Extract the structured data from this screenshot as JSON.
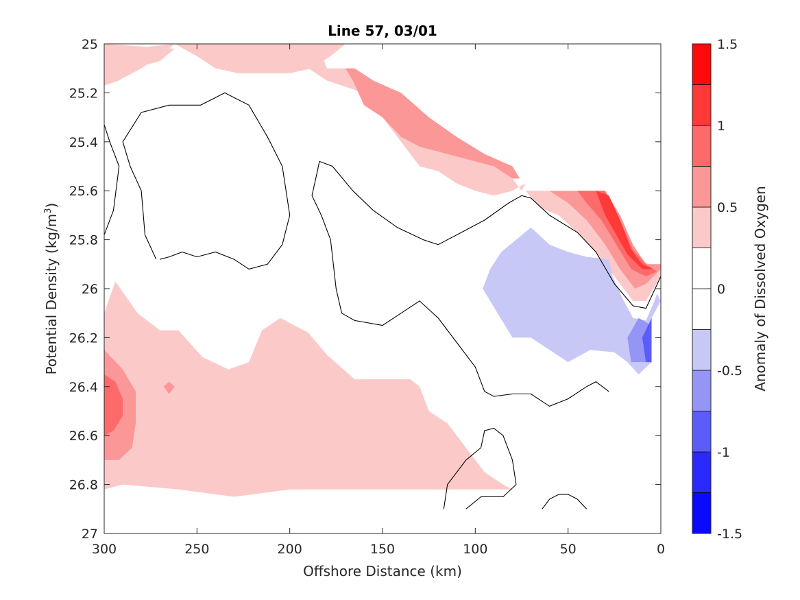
{
  "chart_data": {
    "type": "heatmap",
    "subtype": "filled-contour",
    "title": "Line 57, 03/01",
    "xlabel": "Offshore Distance (km)",
    "ylabel_main": "Potential Density (kg/m",
    "ylabel_sup": "3",
    "ylabel_close": ")",
    "xlim": [
      300,
      0
    ],
    "x_reversed": true,
    "ylim": [
      25,
      27
    ],
    "y_reversed": true,
    "xticks": [
      300,
      250,
      200,
      150,
      100,
      50,
      0
    ],
    "xtick_labels": [
      "300",
      "250",
      "200",
      "150",
      "100",
      "50",
      "0"
    ],
    "yticks": [
      25,
      25.2,
      25.4,
      25.6,
      25.8,
      26,
      26.2,
      26.4,
      26.6,
      26.8,
      27
    ],
    "ytick_labels": [
      "25",
      "25.2",
      "25.4",
      "25.6",
      "25.8",
      "26",
      "26.2",
      "26.4",
      "26.6",
      "26.8",
      "27"
    ],
    "colorbar": {
      "label": "Anomaly of Dissolved Oxygen",
      "range": [
        -1.5,
        1.5
      ],
      "levels": [
        -1.5,
        -1.25,
        -1.0,
        -0.75,
        -0.5,
        -0.25,
        0,
        0.25,
        0.5,
        0.75,
        1.0,
        1.25,
        1.5
      ],
      "colors": [
        "#0a0aff",
        "#2a2aff",
        "#5c5cfa",
        "#9595f6",
        "#c8c8f7",
        "#ffffff",
        "#ffffff",
        "#fcc9c9",
        "#fc9797",
        "#fc6a6a",
        "#ff3838",
        "#ff0a0a"
      ],
      "ticks": [
        1.5,
        1,
        0.5,
        0,
        -0.5,
        -1,
        -1.5
      ],
      "tick_labels": [
        "1.5",
        "1",
        "0.5",
        "0",
        "-0.5",
        "-1",
        "-1.5"
      ]
    },
    "filled_regions": [
      {
        "level": 0.25,
        "color": "#fcc9c9",
        "points": [
          [
            300,
            25
          ],
          [
            262,
            25
          ],
          [
            250,
            25.05
          ],
          [
            240,
            25.1
          ],
          [
            228,
            25.12
          ],
          [
            215,
            25.12
          ],
          [
            200,
            25.12
          ],
          [
            188,
            25.1
          ],
          [
            178,
            25.05
          ],
          [
            170,
            25
          ],
          [
            300,
            25
          ],
          [
            300,
            25.17
          ],
          [
            292,
            25.15
          ],
          [
            284,
            25.1
          ],
          [
            270,
            25.07
          ],
          [
            262,
            25.02
          ]
        ]
      },
      {
        "level": 0.25,
        "color": "#fcc9c9",
        "points": [
          [
            300,
            25.03
          ],
          [
            300,
            25.17
          ],
          [
            290,
            25.14
          ],
          [
            280,
            25.1
          ],
          [
            270,
            25.05
          ],
          [
            262,
            25.0
          ]
        ]
      },
      {
        "level": 0.25,
        "color": "#fcc9c9",
        "points": [
          [
            224,
            25
          ],
          [
            185,
            25
          ],
          [
            180,
            25.1
          ],
          [
            166,
            25.1
          ],
          [
            158,
            25.25
          ],
          [
            150,
            25.3
          ],
          [
            140,
            25.4
          ],
          [
            130,
            25.5
          ],
          [
            120,
            25.52
          ],
          [
            110,
            25.57
          ],
          [
            100,
            25.6
          ],
          [
            90,
            25.62
          ],
          [
            80,
            25.6
          ],
          [
            73,
            25.57
          ],
          [
            75,
            25.6
          ],
          [
            85,
            25.5
          ],
          [
            95,
            25.45
          ],
          [
            110,
            25.42
          ],
          [
            125,
            25.35
          ],
          [
            140,
            25.25
          ],
          [
            160,
            25.2
          ],
          [
            180,
            25.15
          ],
          [
            200,
            25.05
          ]
        ]
      },
      {
        "level": 0.25,
        "color": "#fcc9c9",
        "points": [
          [
            300,
            26.1
          ],
          [
            294,
            25.97
          ],
          [
            282,
            26.1
          ],
          [
            270,
            26.17
          ],
          [
            260,
            26.17
          ],
          [
            247,
            26.28
          ],
          [
            233,
            26.33
          ],
          [
            222,
            26.3
          ],
          [
            215,
            26.17
          ],
          [
            205,
            26.12
          ],
          [
            190,
            26.18
          ],
          [
            180,
            26.27
          ],
          [
            165,
            26.37
          ],
          [
            150,
            26.37
          ],
          [
            135,
            26.37
          ],
          [
            130,
            26.4
          ],
          [
            125,
            26.5
          ],
          [
            115,
            26.55
          ],
          [
            105,
            26.65
          ],
          [
            95,
            26.75
          ],
          [
            85,
            26.8
          ],
          [
            80,
            26.82
          ],
          [
            200,
            26.82
          ],
          [
            230,
            26.85
          ],
          [
            260,
            26.82
          ],
          [
            290,
            26.8
          ],
          [
            300,
            26.82
          ]
        ]
      },
      {
        "level": 0.25,
        "color": "#fcc9c9",
        "points": [
          [
            73,
            25.6
          ],
          [
            30,
            25.6
          ],
          [
            22,
            25.7
          ],
          [
            18,
            25.8
          ],
          [
            12,
            25.88
          ],
          [
            6,
            25.9
          ],
          [
            0,
            25.9
          ],
          [
            0,
            25.95
          ],
          [
            8,
            26.05
          ],
          [
            15,
            26.05
          ],
          [
            25,
            25.95
          ],
          [
            35,
            25.85
          ],
          [
            45,
            25.77
          ],
          [
            55,
            25.7
          ],
          [
            65,
            25.67
          ]
        ]
      },
      {
        "level": 0.5,
        "color": "#fc9797",
        "points": [
          [
            170,
            25.1
          ],
          [
            166,
            25.15
          ],
          [
            160,
            25.25
          ],
          [
            150,
            25.3
          ],
          [
            140,
            25.38
          ],
          [
            130,
            25.42
          ],
          [
            115,
            25.45
          ],
          [
            100,
            25.48
          ],
          [
            90,
            25.5
          ],
          [
            80,
            25.55
          ],
          [
            76,
            25.55
          ],
          [
            80,
            25.5
          ],
          [
            95,
            25.45
          ],
          [
            110,
            25.38
          ],
          [
            125,
            25.3
          ],
          [
            140,
            25.2
          ],
          [
            155,
            25.15
          ],
          [
            165,
            25.1
          ]
        ]
      },
      {
        "level": 0.5,
        "color": "#fc9797",
        "points": [
          [
            300,
            26.25
          ],
          [
            290,
            26.33
          ],
          [
            283,
            26.42
          ],
          [
            283,
            26.55
          ],
          [
            285,
            26.65
          ],
          [
            292,
            26.7
          ],
          [
            300,
            26.7
          ]
        ]
      },
      {
        "level": 0.5,
        "color": "#fc9797",
        "points": [
          [
            265,
            26.38
          ],
          [
            262,
            26.4
          ],
          [
            265,
            26.43
          ],
          [
            268,
            26.4
          ]
        ]
      },
      {
        "level": 0.5,
        "color": "#fc9797",
        "points": [
          [
            60,
            25.6
          ],
          [
            30,
            25.6
          ],
          [
            22,
            25.7
          ],
          [
            15,
            25.82
          ],
          [
            8,
            25.9
          ],
          [
            0,
            25.9
          ],
          [
            0,
            25.92
          ],
          [
            8,
            25.98
          ],
          [
            14,
            26.0
          ],
          [
            22,
            25.92
          ],
          [
            30,
            25.82
          ],
          [
            40,
            25.72
          ],
          [
            50,
            25.65
          ]
        ]
      },
      {
        "level": 0.75,
        "color": "#fc6a6a",
        "points": [
          [
            300,
            26.35
          ],
          [
            294,
            26.38
          ],
          [
            290,
            26.45
          ],
          [
            290,
            26.52
          ],
          [
            295,
            26.58
          ],
          [
            300,
            26.6
          ]
        ]
      },
      {
        "level": 0.75,
        "color": "#fc6a6a",
        "points": [
          [
            45,
            25.6
          ],
          [
            30,
            25.6
          ],
          [
            22,
            25.72
          ],
          [
            15,
            25.84
          ],
          [
            8,
            25.9
          ],
          [
            2,
            25.93
          ],
          [
            8,
            25.95
          ],
          [
            16,
            25.92
          ],
          [
            24,
            25.82
          ],
          [
            32,
            25.72
          ],
          [
            40,
            25.65
          ]
        ]
      },
      {
        "level": 1.0,
        "color": "#ff3838",
        "points": [
          [
            35,
            25.6
          ],
          [
            28,
            25.62
          ],
          [
            22,
            25.72
          ],
          [
            16,
            25.84
          ],
          [
            10,
            25.9
          ],
          [
            4,
            25.92
          ],
          [
            10,
            25.92
          ],
          [
            18,
            25.86
          ],
          [
            24,
            25.78
          ],
          [
            30,
            25.7
          ]
        ]
      },
      {
        "level": -0.5,
        "color": "#c8c8f7",
        "points": [
          [
            96,
            26.0
          ],
          [
            92,
            25.92
          ],
          [
            86,
            25.85
          ],
          [
            78,
            25.8
          ],
          [
            70,
            25.75
          ],
          [
            60,
            25.82
          ],
          [
            50,
            25.85
          ],
          [
            40,
            25.87
          ],
          [
            28,
            25.88
          ],
          [
            26,
            25.95
          ],
          [
            20,
            26.05
          ],
          [
            15,
            26.12
          ],
          [
            8,
            26.13
          ],
          [
            4,
            26.06
          ],
          [
            2,
            26.02
          ],
          [
            0,
            26.05
          ],
          [
            5,
            26.12
          ],
          [
            5,
            26.2
          ],
          [
            5,
            26.3
          ],
          [
            12,
            26.35
          ],
          [
            18,
            26.3
          ],
          [
            25,
            26.26
          ],
          [
            38,
            26.25
          ],
          [
            50,
            26.3
          ],
          [
            60,
            26.25
          ],
          [
            70,
            26.2
          ],
          [
            80,
            26.2
          ],
          [
            88,
            26.1
          ]
        ]
      },
      {
        "level": -0.75,
        "color": "#9595f6",
        "points": [
          [
            18,
            26.2
          ],
          [
            16,
            26.3
          ],
          [
            8,
            26.3
          ],
          [
            5,
            26.3
          ],
          [
            5,
            26.15
          ],
          [
            12,
            26.12
          ]
        ]
      },
      {
        "level": -1.0,
        "color": "#5c5cfa",
        "points": [
          [
            10,
            26.2
          ],
          [
            8,
            26.3
          ],
          [
            5,
            26.3
          ],
          [
            5,
            26.12
          ]
        ]
      }
    ],
    "contours_zero": [
      [
        [
          300,
          25.33
        ],
        [
          297,
          25.4
        ],
        [
          292,
          25.5
        ],
        [
          295,
          25.68
        ],
        [
          300,
          25.78
        ]
      ],
      [
        [
          270,
          25.88
        ],
        [
          265,
          25.87
        ],
        [
          258,
          25.85
        ],
        [
          250,
          25.87
        ],
        [
          240,
          25.85
        ],
        [
          230,
          25.88
        ],
        [
          222,
          25.92
        ],
        [
          212,
          25.9
        ],
        [
          204,
          25.82
        ],
        [
          200,
          25.7
        ],
        [
          204,
          25.5
        ],
        [
          212,
          25.38
        ],
        [
          222,
          25.25
        ],
        [
          235,
          25.2
        ],
        [
          248,
          25.25
        ],
        [
          265,
          25.25
        ],
        [
          280,
          25.28
        ],
        [
          290,
          25.4
        ],
        [
          286,
          25.5
        ],
        [
          280,
          25.6
        ],
        [
          278,
          25.78
        ],
        [
          272,
          25.88
        ]
      ],
      [
        [
          184,
          25.48
        ],
        [
          177,
          25.5
        ],
        [
          166,
          25.6
        ],
        [
          155,
          25.68
        ],
        [
          142,
          25.75
        ],
        [
          128,
          25.8
        ],
        [
          120,
          25.82
        ],
        [
          110,
          25.78
        ],
        [
          95,
          25.72
        ],
        [
          82,
          25.65
        ],
        [
          75,
          25.62
        ],
        [
          70,
          25.63
        ],
        [
          60,
          25.7
        ],
        [
          45,
          25.77
        ],
        [
          35,
          25.85
        ],
        [
          25,
          25.98
        ],
        [
          15,
          26.07
        ],
        [
          8,
          26.08
        ],
        [
          0,
          25.95
        ]
      ],
      [
        [
          184,
          25.48
        ],
        [
          186,
          25.55
        ],
        [
          188,
          25.62
        ],
        [
          183,
          25.7
        ],
        [
          178,
          25.8
        ],
        [
          175,
          26.0
        ],
        [
          172,
          26.1
        ],
        [
          165,
          26.13
        ],
        [
          150,
          26.15
        ],
        [
          140,
          26.1
        ],
        [
          130,
          26.05
        ],
        [
          120,
          26.12
        ],
        [
          110,
          26.22
        ],
        [
          100,
          26.32
        ],
        [
          95,
          26.42
        ],
        [
          90,
          26.44
        ],
        [
          80,
          26.43
        ],
        [
          70,
          26.43
        ],
        [
          60,
          26.48
        ],
        [
          50,
          26.45
        ],
        [
          40,
          26.4
        ],
        [
          35,
          26.38
        ],
        [
          28,
          26.42
        ]
      ],
      [
        [
          117,
          26.9
        ],
        [
          115,
          26.8
        ],
        [
          105,
          26.7
        ],
        [
          97,
          26.65
        ],
        [
          95,
          26.58
        ],
        [
          90,
          26.57
        ],
        [
          85,
          26.6
        ],
        [
          80,
          26.7
        ],
        [
          78,
          26.8
        ],
        [
          85,
          26.85
        ],
        [
          97,
          26.85
        ],
        [
          105,
          26.9
        ]
      ],
      [
        [
          64,
          26.9
        ],
        [
          60,
          26.86
        ],
        [
          55,
          26.84
        ],
        [
          50,
          26.84
        ],
        [
          45,
          26.86
        ],
        [
          40,
          26.9
        ]
      ]
    ]
  }
}
